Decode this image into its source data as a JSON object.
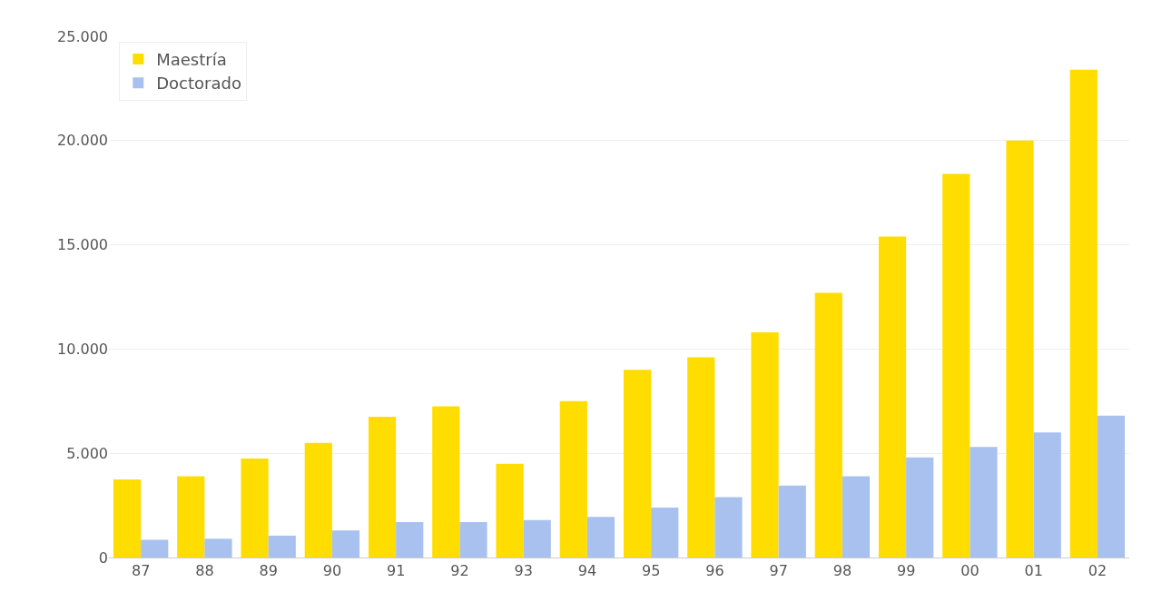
{
  "chart_data": {
    "type": "bar",
    "categories": [
      "87",
      "88",
      "89",
      "90",
      "91",
      "92",
      "93",
      "94",
      "95",
      "96",
      "97",
      "98",
      "99",
      "00",
      "01",
      "02"
    ],
    "series": [
      {
        "name": "Maestría",
        "color": "#ffdd00",
        "values": [
          3750,
          3900,
          4750,
          5500,
          6750,
          7250,
          4500,
          7500,
          9000,
          9600,
          10800,
          12700,
          15400,
          18400,
          20000,
          23400
        ]
      },
      {
        "name": "Doctorado",
        "color": "#a9c1ee",
        "values": [
          850,
          900,
          1050,
          1300,
          1700,
          1700,
          1800,
          1950,
          2400,
          2900,
          3450,
          3900,
          4800,
          5300,
          6000,
          6800
        ]
      }
    ],
    "ylim": [
      0,
      25000
    ],
    "yticks": [
      0,
      {
        "value": 5000,
        "label": "5.000"
      },
      {
        "value": 10000,
        "label": "10.000"
      },
      {
        "value": 15000,
        "label": "15.000"
      },
      {
        "value": 20000,
        "label": "20.000"
      },
      {
        "value": 25000,
        "label": "25.000"
      }
    ],
    "grid": "y",
    "legend": "top left"
  }
}
